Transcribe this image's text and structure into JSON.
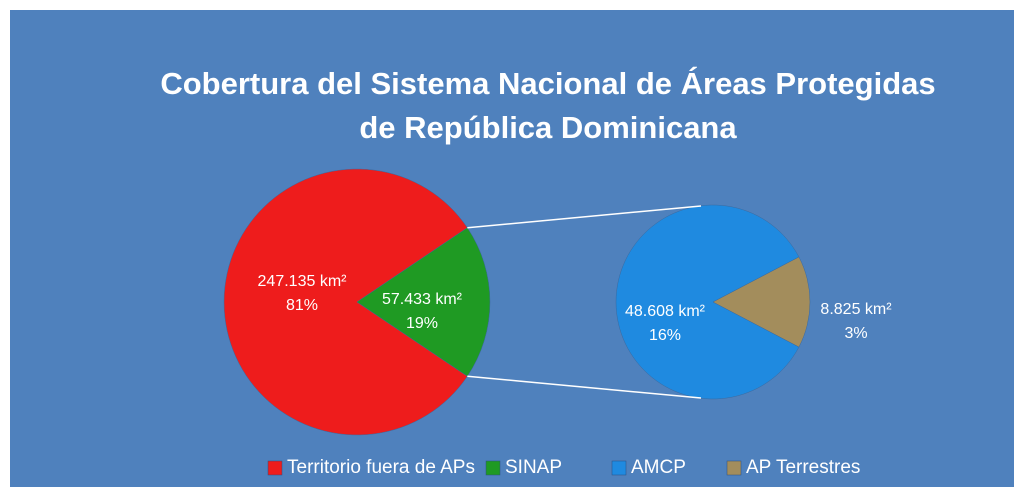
{
  "chart_data": {
    "type": "pie_of_pie",
    "title": [
      "Cobertura del Sistema Nacional de Áreas Protegidas",
      "de República Dominicana"
    ],
    "categories": [
      "Territorio fuera de APs",
      "SINAP",
      "AMCP",
      "AP Terrestres"
    ],
    "values": [
      247135,
      57433,
      48608,
      8825
    ],
    "value_labels": [
      "247.135 km²",
      "57.433 km²",
      "48.608 km²",
      "8.825 km²"
    ],
    "percent_values": [
      81,
      19,
      16,
      3
    ],
    "percent_labels": [
      "81%",
      "19%",
      "16%",
      "3%"
    ],
    "colors": [
      "#ee1c1c",
      "#1f9a23",
      "#1f8ae0",
      "#a38d5c"
    ],
    "legend": "bottom"
  }
}
